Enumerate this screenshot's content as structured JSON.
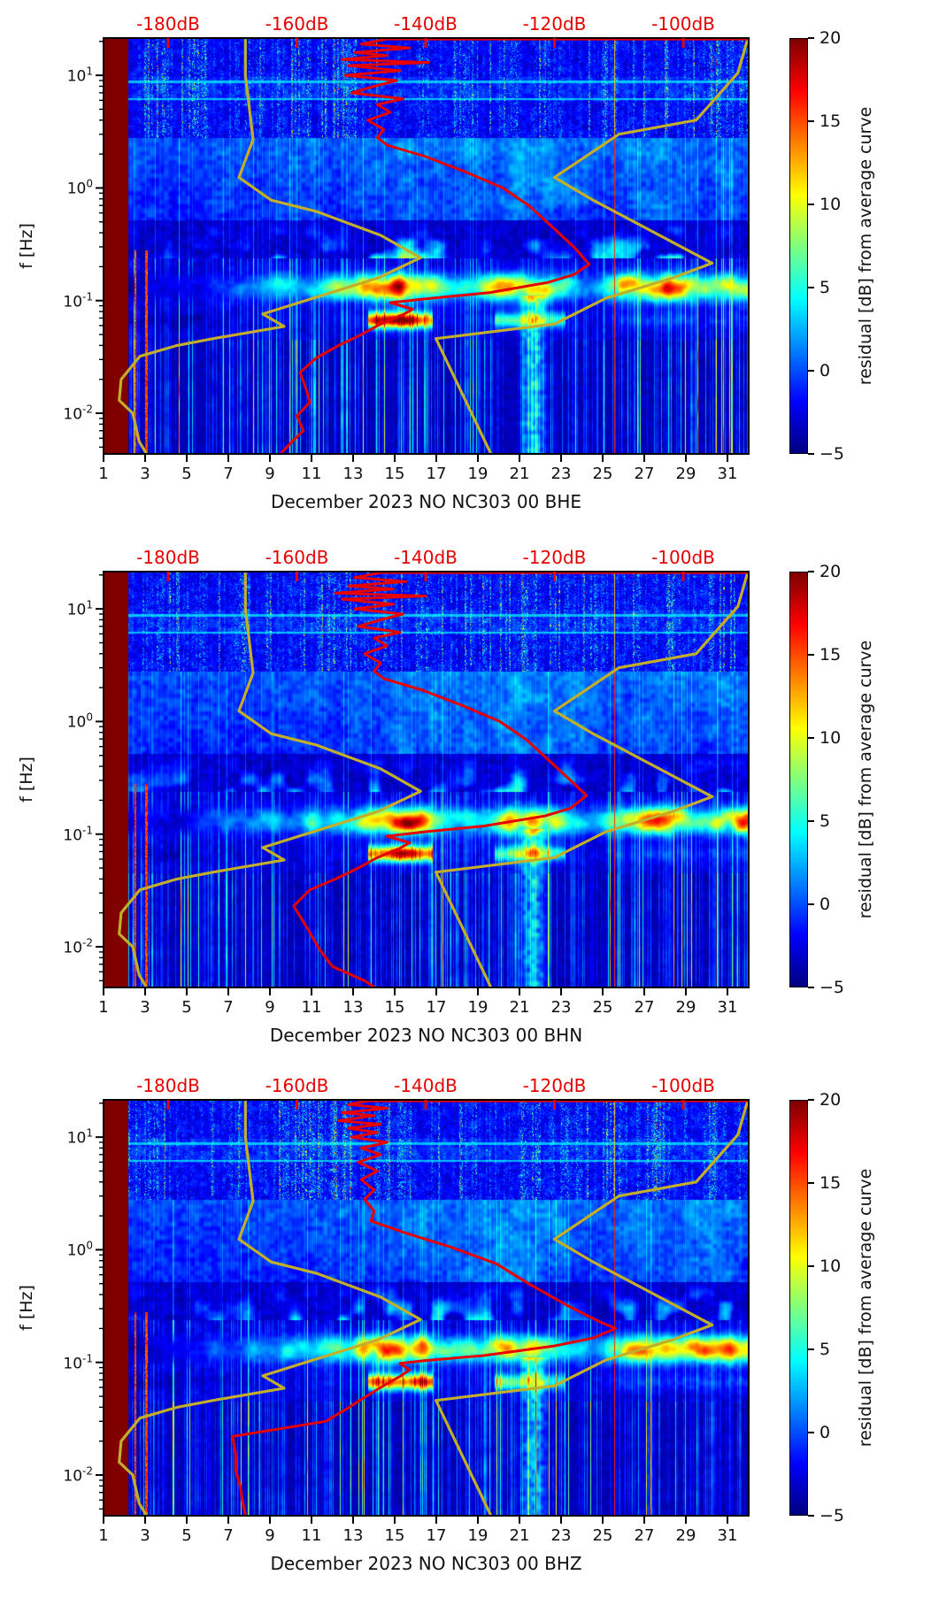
{
  "chart_data": {
    "type": "heatmap",
    "panels": [
      {
        "id": "BHE",
        "xlabel": "December 2023 NO NC303 00 BHE"
      },
      {
        "id": "BHN",
        "xlabel": "December 2023 NO NC303 00 BHN"
      },
      {
        "id": "BHZ",
        "xlabel": "December 2023 NO NC303 00 BHZ"
      }
    ],
    "x_axis": {
      "ticks": [
        1,
        3,
        5,
        7,
        9,
        11,
        13,
        15,
        17,
        19,
        21,
        23,
        25,
        27,
        29,
        31
      ],
      "range_days": [
        1,
        32
      ]
    },
    "y_axis": {
      "label": "f [Hz]",
      "scale": "log",
      "range_hz": [
        0.0044,
        21.4
      ],
      "ticks": [
        {
          "value": 10,
          "base": "10",
          "exp": "1"
        },
        {
          "value": 1,
          "base": "10",
          "exp": "0"
        },
        {
          "value": 0.1,
          "base": "10",
          "exp": "-1"
        },
        {
          "value": 0.01,
          "base": "10",
          "exp": "-2"
        }
      ]
    },
    "top_axis": {
      "color": "#e60000",
      "ticks_db": [
        -180,
        -160,
        -140,
        -120,
        -100
      ],
      "labels": [
        "-180dB",
        "-160dB",
        "-140dB",
        "-120dB",
        "-100dB"
      ],
      "range_db": [
        -190.0,
        -89.8
      ]
    },
    "colorbar": {
      "label": "residual [dB] from average curve",
      "ticks": [
        20,
        15,
        10,
        5,
        0,
        -5
      ],
      "tick_labels": [
        "20",
        "15",
        "10",
        "5",
        "0",
        "−5"
      ],
      "range": [
        -5,
        20
      ],
      "colormap": "jet"
    },
    "curves": {
      "station_psd_color": "#e60000",
      "noise_model_color": "#c2ae2b",
      "nlnm_db_hz": [
        [
          -168,
          21
        ],
        [
          -168,
          10
        ],
        [
          -166.8,
          2.7
        ],
        [
          -169,
          1.24
        ],
        [
          -164,
          0.78
        ],
        [
          -157,
          0.62
        ],
        [
          -147,
          0.38
        ],
        [
          -140.8,
          0.24
        ],
        [
          -147.3,
          0.16
        ],
        [
          -165.3,
          0.076
        ],
        [
          -162,
          0.059
        ],
        [
          -173,
          0.046
        ],
        [
          -178.6,
          0.04
        ],
        [
          -184.4,
          0.032
        ],
        [
          -187.3,
          0.02
        ],
        [
          -187.6,
          0.013
        ],
        [
          -185.5,
          0.01
        ],
        [
          -184.5,
          0.0056
        ],
        [
          -183.4,
          0.0044
        ]
      ],
      "nhnm_db_hz": [
        [
          -90,
          21
        ],
        [
          -91.5,
          10.5
        ],
        [
          -98,
          4.0
        ],
        [
          -110,
          3.0
        ],
        [
          -120,
          1.24
        ],
        [
          -114,
          0.78
        ],
        [
          -95.5,
          0.215
        ],
        [
          -101.5,
          0.16
        ],
        [
          -112,
          0.105
        ],
        [
          -120,
          0.062
        ],
        [
          -138.4,
          0.046
        ],
        [
          -129.9,
          0.0044
        ]
      ],
      "psd_db_hz": {
        "BHE": [
          [
            -146,
            21
          ],
          [
            -150,
            19
          ],
          [
            -142.5,
            17.5
          ],
          [
            -151,
            16
          ],
          [
            -146,
            15
          ],
          [
            -153,
            13.8
          ],
          [
            -139.5,
            13
          ],
          [
            -152,
            12.2
          ],
          [
            -144,
            11
          ],
          [
            -152.5,
            10
          ],
          [
            -144.5,
            9
          ],
          [
            -148,
            8
          ],
          [
            -151.5,
            7
          ],
          [
            -143.5,
            6.2
          ],
          [
            -147.5,
            5.5
          ],
          [
            -145.5,
            4.7
          ],
          [
            -149,
            4
          ],
          [
            -146.5,
            3.3
          ],
          [
            -147.5,
            2.8
          ],
          [
            -146,
            2.4
          ],
          [
            -140,
            1.9
          ],
          [
            -134,
            1.4
          ],
          [
            -128,
            1.0
          ],
          [
            -124,
            0.7
          ],
          [
            -120.5,
            0.46
          ],
          [
            -117,
            0.3
          ],
          [
            -114.6,
            0.21
          ],
          [
            -117,
            0.17
          ],
          [
            -121,
            0.145
          ],
          [
            -130,
            0.118
          ],
          [
            -139,
            0.105
          ],
          [
            -145.5,
            0.096
          ],
          [
            -142,
            0.084
          ],
          [
            -143.5,
            0.075
          ],
          [
            -147,
            0.062
          ],
          [
            -150,
            0.05
          ],
          [
            -153.5,
            0.04
          ],
          [
            -157,
            0.031
          ],
          [
            -159.5,
            0.023
          ],
          [
            -158.5,
            0.016
          ],
          [
            -158,
            0.0125
          ],
          [
            -160,
            0.0095
          ],
          [
            -159,
            0.007
          ],
          [
            -160.5,
            0.0058
          ],
          [
            -162.5,
            0.0044
          ]
        ],
        "BHN": [
          [
            -147,
            21
          ],
          [
            -151,
            19
          ],
          [
            -143,
            17.5
          ],
          [
            -152,
            16
          ],
          [
            -145,
            15
          ],
          [
            -154,
            13.8
          ],
          [
            -140,
            13
          ],
          [
            -153,
            12.2
          ],
          [
            -145,
            11
          ],
          [
            -151,
            10
          ],
          [
            -143.5,
            9
          ],
          [
            -147,
            8
          ],
          [
            -150.5,
            7
          ],
          [
            -144,
            6.2
          ],
          [
            -148,
            5.5
          ],
          [
            -146,
            4.7
          ],
          [
            -149.5,
            4
          ],
          [
            -147,
            3.3
          ],
          [
            -148,
            2.8
          ],
          [
            -146.5,
            2.4
          ],
          [
            -140.5,
            1.9
          ],
          [
            -134.5,
            1.4
          ],
          [
            -128.5,
            1.0
          ],
          [
            -124.5,
            0.7
          ],
          [
            -121,
            0.46
          ],
          [
            -117.5,
            0.3
          ],
          [
            -115,
            0.22
          ],
          [
            -117.5,
            0.17
          ],
          [
            -121.5,
            0.145
          ],
          [
            -131,
            0.118
          ],
          [
            -140,
            0.105
          ],
          [
            -146,
            0.096
          ],
          [
            -142.5,
            0.084
          ],
          [
            -144,
            0.075
          ],
          [
            -147.5,
            0.062
          ],
          [
            -150.5,
            0.05
          ],
          [
            -154,
            0.04
          ],
          [
            -158,
            0.032
          ],
          [
            -160.5,
            0.023
          ],
          [
            -158.5,
            0.015
          ],
          [
            -156.5,
            0.0095
          ],
          [
            -154.5,
            0.0067
          ],
          [
            -149.5,
            0.005
          ],
          [
            -148,
            0.0044
          ]
        ],
        "BHZ": [
          [
            -149,
            21
          ],
          [
            -152,
            19.5
          ],
          [
            -146,
            18
          ],
          [
            -153,
            16.5
          ],
          [
            -148,
            15.5
          ],
          [
            -153.5,
            14
          ],
          [
            -147,
            13
          ],
          [
            -152,
            12
          ],
          [
            -147.5,
            11
          ],
          [
            -151.5,
            10
          ],
          [
            -146,
            9
          ],
          [
            -150,
            8
          ],
          [
            -147,
            7
          ],
          [
            -150.5,
            6
          ],
          [
            -147.5,
            5
          ],
          [
            -150,
            4.2
          ],
          [
            -148,
            3.4
          ],
          [
            -149.5,
            2.8
          ],
          [
            -148,
            2.2
          ],
          [
            -148.5,
            1.8
          ],
          [
            -143,
            1.4
          ],
          [
            -136,
            1.05
          ],
          [
            -129,
            0.75
          ],
          [
            -124,
            0.5
          ],
          [
            -118,
            0.32
          ],
          [
            -113,
            0.23
          ],
          [
            -110.5,
            0.2
          ],
          [
            -114,
            0.165
          ],
          [
            -120,
            0.14
          ],
          [
            -131,
            0.115
          ],
          [
            -140,
            0.104
          ],
          [
            -144,
            0.098
          ],
          [
            -142.5,
            0.086
          ],
          [
            -144,
            0.075
          ],
          [
            -147,
            0.06
          ],
          [
            -150,
            0.047
          ],
          [
            -152.5,
            0.038
          ],
          [
            -155.5,
            0.03
          ],
          [
            -170,
            0.022
          ],
          [
            -169.5,
            0.015
          ],
          [
            -169.5,
            0.011
          ],
          [
            -168.8,
            0.0079
          ],
          [
            -168.5,
            0.006
          ],
          [
            -168,
            0.0044
          ]
        ]
      }
    },
    "spectrogram_features": {
      "masked_until_day": 2.15,
      "vertical_red_line_day": 25.55,
      "yellow_column_days": [
        20.9,
        22.4
      ],
      "red_column_days": [
        2.5,
        3.05
      ],
      "horizontal_line_hz": [
        8.8,
        6.2
      ],
      "speckle_min_hz": 2.8,
      "microseism_center_hz": 0.13,
      "secondary_band_hz": 0.068,
      "microseism_day_amplitude": [
        [
          1,
          0.05
        ],
        [
          3,
          0.15
        ],
        [
          5,
          0.2
        ],
        [
          7,
          0.3
        ],
        [
          9,
          0.45
        ],
        [
          11,
          0.5
        ],
        [
          13,
          0.6
        ],
        [
          14,
          1.0
        ],
        [
          15,
          1.05
        ],
        [
          16,
          1.0
        ],
        [
          17,
          0.8
        ],
        [
          18,
          0.55
        ],
        [
          19,
          0.5
        ],
        [
          20,
          0.8
        ],
        [
          21,
          0.85
        ],
        [
          22,
          0.8
        ],
        [
          23,
          0.7
        ],
        [
          24,
          0.45
        ],
        [
          25,
          0.5
        ],
        [
          26,
          0.85
        ],
        [
          27,
          0.9
        ],
        [
          28,
          1.0
        ],
        [
          29,
          0.9
        ],
        [
          30,
          0.8
        ],
        [
          32,
          0.85
        ]
      ],
      "cloud_day_amplitude": [
        [
          1,
          0.25
        ],
        [
          8,
          0.3
        ],
        [
          13,
          0.45
        ],
        [
          15,
          0.75
        ],
        [
          18,
          0.7
        ],
        [
          21,
          0.8
        ],
        [
          24,
          0.65
        ],
        [
          25.2,
          0.45
        ],
        [
          26.5,
          0.6
        ],
        [
          29,
          0.7
        ],
        [
          32,
          0.55
        ]
      ],
      "panel_seeds": [
        3,
        7,
        11
      ]
    }
  }
}
